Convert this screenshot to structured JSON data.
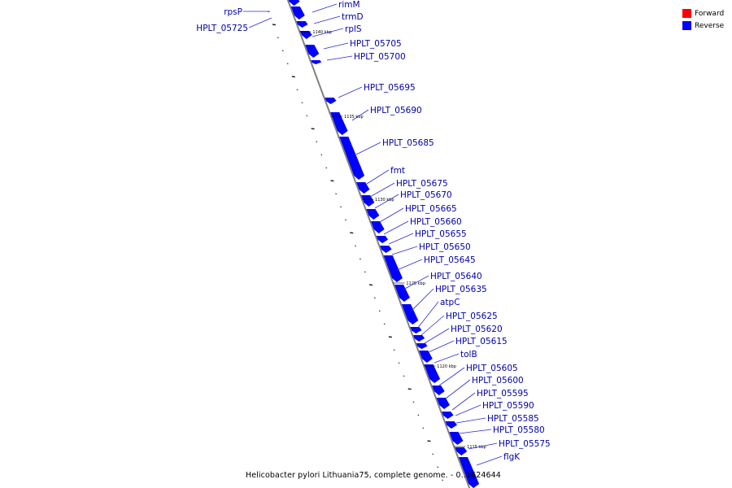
{
  "legend": {
    "forward_label": "Forward",
    "reverse_label": "Reverse",
    "forward_color": "#ff0000",
    "reverse_color": "#0000ff"
  },
  "caption": "Helicobacter pylori Lithuania75, complete genome. - 0..1624644",
  "colors": {
    "backbone": "#888888",
    "label": "#0000aa",
    "leader": "#3333cc"
  },
  "ticks": [
    "1140 kbp",
    "1135 kbp",
    "1130 kbp",
    "1125 kbp",
    "1120 kbp",
    "1115 kbp"
  ],
  "genes": [
    "rpsP",
    "HPLT_05725",
    "rimM",
    "trmD",
    "rplS",
    "HPLT_05705",
    "HPLT_05700",
    "HPLT_05695",
    "HPLT_05690",
    "HPLT_05685",
    "fmt",
    "HPLT_05675",
    "HPLT_05670",
    "HPLT_05665",
    "HPLT_05660",
    "HPLT_05655",
    "HPLT_05650",
    "HPLT_05645",
    "HPLT_05640",
    "HPLT_05635",
    "atpC",
    "HPLT_05625",
    "HPLT_05620",
    "HPLT_05615",
    "tolB",
    "HPLT_05605",
    "HPLT_05600",
    "HPLT_05595",
    "HPLT_05590",
    "HPLT_05585",
    "HPLT_05580",
    "HPLT_05575",
    "flgK"
  ]
}
